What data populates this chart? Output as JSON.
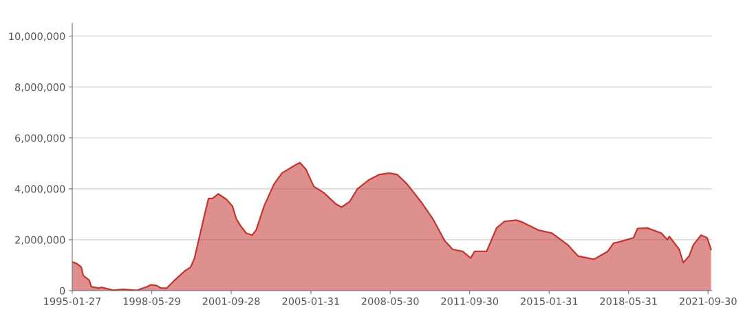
{
  "chart_data": {
    "type": "area",
    "x": [
      "1995-01-27",
      "1995-04",
      "1995-06",
      "1995-07",
      "1995-10",
      "1995-11",
      "1996-03",
      "1996-04",
      "1996-10",
      "1997-03",
      "1997-10",
      "1998-01",
      "1998-03",
      "1998-05",
      "1998-08",
      "1998-10",
      "1999-01",
      "1999-05",
      "1999-10",
      "2000-01",
      "2000-03",
      "2000-05",
      "2000-08",
      "2000-10",
      "2000-12",
      "2001-03",
      "2001-07",
      "2001-10",
      "2001-12",
      "2002-02",
      "2002-05",
      "2002-08",
      "2002-10",
      "2003-02",
      "2003-07",
      "2003-11",
      "2004-05",
      "2004-08",
      "2004-11",
      "2005-03",
      "2005-08",
      "2006-02",
      "2006-05",
      "2006-09",
      "2007-01",
      "2007-07",
      "2007-12",
      "2008-05",
      "2008-09",
      "2009-02",
      "2009-09",
      "2010-03",
      "2010-09",
      "2011-01",
      "2011-06",
      "2011-10",
      "2011-12",
      "2012-06",
      "2012-11",
      "2013-03",
      "2013-09",
      "2013-12",
      "2014-08",
      "2015-03",
      "2015-06",
      "2015-11",
      "2016-04",
      "2016-12",
      "2017-07",
      "2017-10",
      "2018-01",
      "2018-08",
      "2018-10",
      "2019-03",
      "2019-10",
      "2020-01",
      "2020-02",
      "2020-07",
      "2020-09",
      "2020-12",
      "2021-02",
      "2021-06",
      "2021-09",
      "2021-11"
    ],
    "series": [
      {
        "color": "#c23531",
        "values": [
          1130000,
          1050000,
          920000,
          590000,
          410000,
          150000,
          100000,
          130000,
          20000,
          50000,
          10000,
          100000,
          150000,
          230000,
          200000,
          100000,
          100000,
          410000,
          770000,
          920000,
          1280000,
          1950000,
          2970000,
          3620000,
          3620000,
          3800000,
          3590000,
          3330000,
          2820000,
          2560000,
          2260000,
          2180000,
          2380000,
          3330000,
          4180000,
          4620000,
          4900000,
          5030000,
          4770000,
          4100000,
          3850000,
          3410000,
          3280000,
          3490000,
          4000000,
          4360000,
          4560000,
          4620000,
          4560000,
          4180000,
          3490000,
          2820000,
          1950000,
          1620000,
          1540000,
          1280000,
          1540000,
          1540000,
          2460000,
          2720000,
          2770000,
          2690000,
          2380000,
          2260000,
          2080000,
          1790000,
          1360000,
          1230000,
          1540000,
          1870000,
          1920000,
          2080000,
          2440000,
          2460000,
          2260000,
          2000000,
          2130000,
          1620000,
          1100000,
          1360000,
          1790000,
          2180000,
          2080000,
          1620000
        ]
      }
    ],
    "xlim": [
      "1995-01-27",
      "2021-11-30"
    ],
    "xticks": [
      "1995-01-27",
      "1998-05-29",
      "2001-09-28",
      "2005-01-31",
      "2008-05-30",
      "2011-09-30",
      "2015-01-31",
      "2018-05-31",
      "2021-09-30"
    ],
    "ylim": [
      0,
      10500000
    ],
    "yticks": [
      0,
      {
        "value": 2000000,
        "label": "2,000,000"
      },
      {
        "value": 4000000,
        "label": "4,000,000"
      },
      {
        "value": 6000000,
        "label": "6,000,000"
      },
      {
        "value": 8000000,
        "label": "8,000,000"
      },
      {
        "value": 10000000,
        "label": "10,000,000"
      }
    ],
    "grid": "y"
  }
}
